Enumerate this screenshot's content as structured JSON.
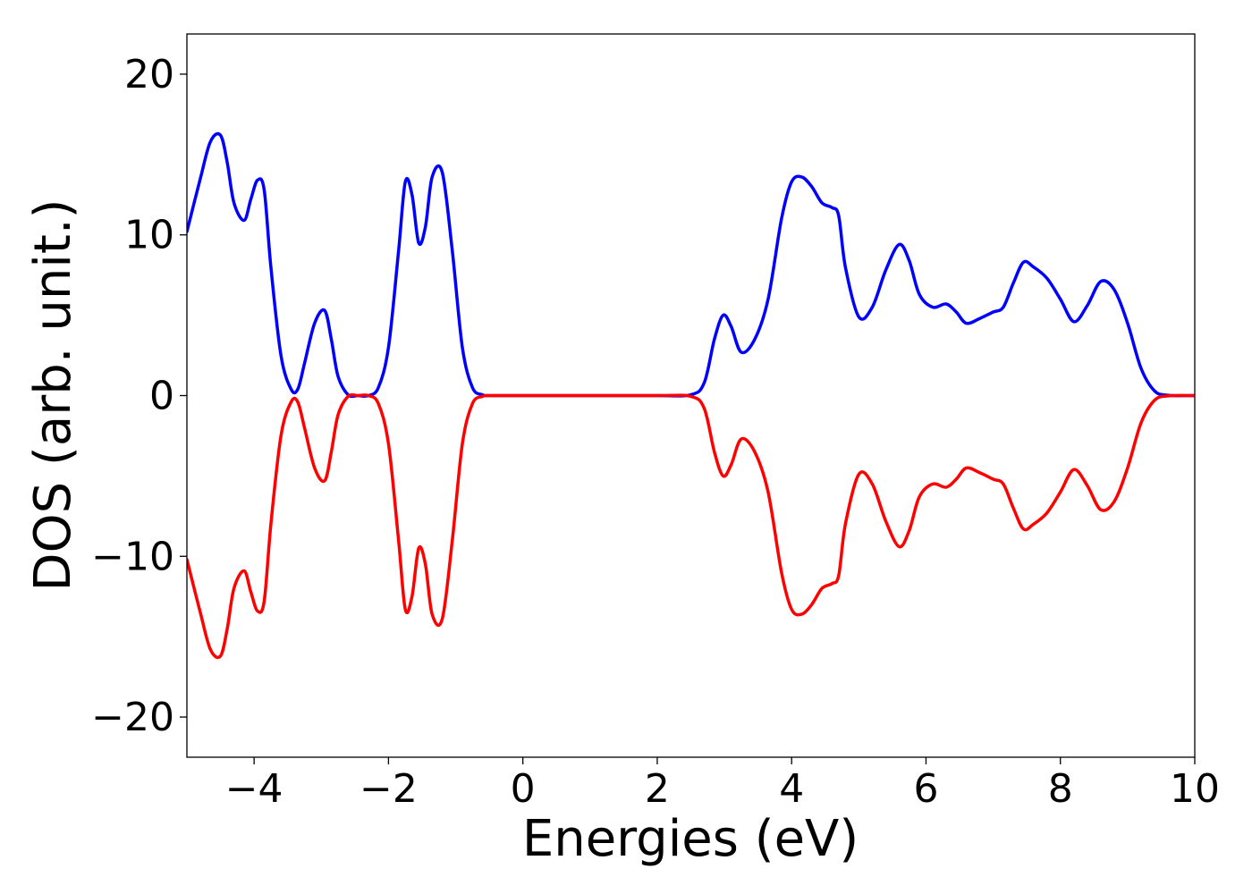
{
  "chart_data": {
    "type": "line",
    "title": "",
    "xlabel": "Energies (eV)",
    "ylabel": "DOS (arb. unit.)",
    "xlim": [
      -5,
      10
    ],
    "ylim": [
      -22.5,
      22.5
    ],
    "xticks": [
      -4,
      -2,
      0,
      2,
      4,
      6,
      8,
      10
    ],
    "xtick_labels": [
      "−4",
      "−2",
      "0",
      "2",
      "4",
      "6",
      "8",
      "10"
    ],
    "yticks": [
      20,
      10,
      0,
      -10,
      -20
    ],
    "ytick_labels": [
      "20",
      "10",
      "0",
      "−10",
      "−20"
    ],
    "grid": false,
    "legend": "none",
    "series": [
      {
        "color": "#0000ff",
        "x": [
          -5.0,
          -4.8,
          -4.65,
          -4.5,
          -4.4,
          -4.3,
          -4.15,
          -4.05,
          -3.95,
          -3.85,
          -3.75,
          -3.6,
          -3.45,
          -3.35,
          -3.25,
          -3.1,
          -2.95,
          -2.85,
          -2.75,
          -2.6,
          -2.45,
          -2.3,
          -2.15,
          -2.0,
          -1.85,
          -1.75,
          -1.65,
          -1.55,
          -1.45,
          -1.35,
          -1.2,
          -1.05,
          -0.9,
          -0.75,
          -0.6,
          -0.5,
          0.0,
          1.0,
          2.0,
          2.5,
          2.7,
          2.85,
          2.98,
          3.1,
          3.25,
          3.45,
          3.65,
          3.85,
          4.0,
          4.15,
          4.3,
          4.45,
          4.6,
          4.7,
          4.8,
          5.0,
          5.2,
          5.4,
          5.6,
          5.75,
          5.9,
          6.1,
          6.3,
          6.45,
          6.6,
          6.8,
          7.0,
          7.15,
          7.3,
          7.45,
          7.6,
          7.8,
          8.0,
          8.2,
          8.4,
          8.6,
          8.8,
          9.0,
          9.2,
          9.4,
          9.6,
          10.0
        ],
        "y": [
          10.2,
          13.5,
          15.8,
          16.2,
          14.5,
          12.0,
          10.9,
          12.2,
          13.4,
          12.8,
          8.0,
          2.5,
          0.4,
          0.4,
          2.0,
          4.5,
          5.3,
          3.5,
          1.2,
          0.05,
          0.0,
          0.0,
          0.5,
          3.0,
          9.0,
          13.3,
          12.5,
          9.5,
          10.5,
          13.6,
          13.9,
          9.0,
          3.0,
          0.5,
          0.05,
          0.0,
          0.0,
          0.0,
          0.0,
          0.05,
          0.8,
          3.5,
          5.0,
          4.3,
          2.7,
          3.5,
          6.0,
          11.0,
          13.3,
          13.6,
          13.0,
          12.0,
          11.7,
          11.2,
          8.0,
          4.9,
          5.5,
          7.8,
          9.4,
          8.4,
          6.3,
          5.5,
          5.7,
          5.2,
          4.5,
          4.8,
          5.2,
          5.5,
          7.0,
          8.3,
          8.0,
          7.3,
          6.0,
          4.6,
          5.6,
          7.1,
          6.6,
          4.5,
          1.7,
          0.3,
          0.02,
          0.0
        ]
      },
      {
        "color": "#ff0000",
        "x": [
          -5.0,
          -4.8,
          -4.65,
          -4.5,
          -4.4,
          -4.3,
          -4.15,
          -4.05,
          -3.95,
          -3.85,
          -3.75,
          -3.6,
          -3.45,
          -3.35,
          -3.25,
          -3.1,
          -2.95,
          -2.85,
          -2.75,
          -2.6,
          -2.45,
          -2.3,
          -2.15,
          -2.0,
          -1.85,
          -1.75,
          -1.65,
          -1.55,
          -1.45,
          -1.35,
          -1.2,
          -1.05,
          -0.9,
          -0.75,
          -0.6,
          -0.5,
          0.0,
          1.0,
          2.0,
          2.5,
          2.7,
          2.85,
          2.98,
          3.1,
          3.25,
          3.45,
          3.65,
          3.85,
          4.0,
          4.15,
          4.3,
          4.45,
          4.6,
          4.7,
          4.8,
          5.0,
          5.2,
          5.4,
          5.6,
          5.75,
          5.9,
          6.1,
          6.3,
          6.45,
          6.6,
          6.8,
          7.0,
          7.15,
          7.3,
          7.45,
          7.6,
          7.8,
          8.0,
          8.2,
          8.4,
          8.6,
          8.8,
          9.0,
          9.2,
          9.4,
          9.6,
          10.0
        ],
        "y": [
          -10.2,
          -13.5,
          -15.8,
          -16.2,
          -14.5,
          -12.0,
          -10.9,
          -12.2,
          -13.4,
          -12.8,
          -8.0,
          -2.5,
          -0.4,
          -0.4,
          -2.0,
          -4.5,
          -5.3,
          -3.5,
          -1.2,
          -0.05,
          0.0,
          0.0,
          -0.5,
          -3.0,
          -9.0,
          -13.3,
          -12.5,
          -9.5,
          -10.5,
          -13.6,
          -13.9,
          -9.0,
          -3.0,
          -0.5,
          -0.05,
          0.0,
          0.0,
          0.0,
          0.0,
          -0.05,
          -0.8,
          -3.5,
          -5.0,
          -4.3,
          -2.7,
          -3.5,
          -6.0,
          -11.0,
          -13.3,
          -13.6,
          -13.0,
          -12.0,
          -11.7,
          -11.2,
          -8.0,
          -4.9,
          -5.5,
          -7.8,
          -9.4,
          -8.4,
          -6.3,
          -5.5,
          -5.7,
          -5.2,
          -4.5,
          -4.8,
          -5.2,
          -5.5,
          -7.0,
          -8.3,
          -8.0,
          -7.3,
          -6.0,
          -4.6,
          -5.6,
          -7.1,
          -6.6,
          -4.5,
          -1.7,
          -0.3,
          -0.02,
          0.0
        ]
      }
    ]
  }
}
